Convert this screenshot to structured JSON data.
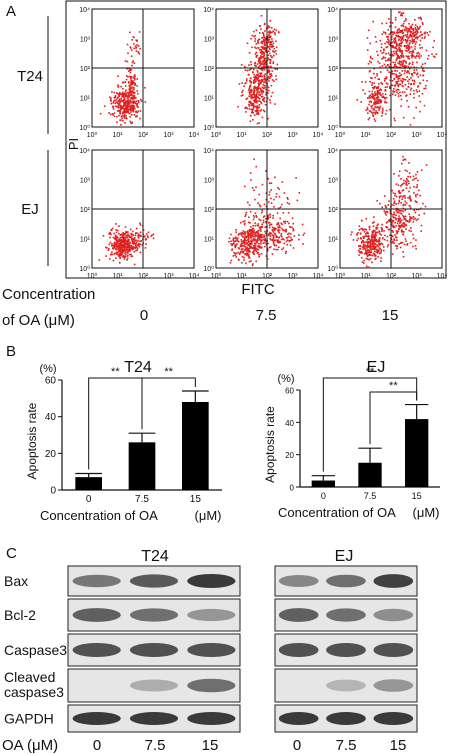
{
  "panel_a": {
    "label": "A",
    "x_axis_label": "FITC",
    "y_axis_label": "PI",
    "row_labels": [
      "T24",
      "EJ"
    ],
    "tick_labels": [
      "10⁰",
      "10¹",
      "10²",
      "10³",
      "10⁴"
    ],
    "concentration_caption_line1": "Concentration",
    "concentration_caption_line2": "of OA (μM)",
    "concentrations": [
      "0",
      "7.5",
      "15"
    ],
    "dot_color": "#e02020"
  },
  "panel_b": {
    "label": "B"
  },
  "panel_c": {
    "label": "C",
    "cell_lines": [
      "T24",
      "EJ"
    ],
    "proteins": [
      "Bax",
      "Bcl-2",
      "Caspase3",
      "Cleaved caspase3",
      "GAPDH"
    ],
    "dose_axis_label": "OA (μM)",
    "doses": [
      "0",
      "7.5",
      "15"
    ]
  },
  "chart_data": [
    {
      "type": "bar",
      "title": "T24",
      "xlabel": "Concentration of OA",
      "xlabel_unit": "(μM)",
      "ylabel": "Apoptosis rate",
      "ylabel_unit": "(%)",
      "categories": [
        "0",
        "7.5",
        "15"
      ],
      "values": [
        7,
        26,
        48
      ],
      "errors": [
        2,
        5,
        6
      ],
      "ylim": [
        0,
        60
      ],
      "yticks": [
        0,
        20,
        40,
        60
      ],
      "significance": [
        {
          "from": 0,
          "to": 1,
          "label": "**"
        },
        {
          "from": 1,
          "to": 2,
          "label": "**"
        }
      ],
      "bar_color": "#000000"
    },
    {
      "type": "bar",
      "title": "EJ",
      "xlabel": "Concentration of OA",
      "xlabel_unit": "(μM)",
      "ylabel": "Apoptosis rate",
      "ylabel_unit": "(%)",
      "categories": [
        "0",
        "7.5",
        "15"
      ],
      "values": [
        4,
        15,
        42
      ],
      "errors": [
        3,
        9,
        9
      ],
      "ylim": [
        0,
        60
      ],
      "yticks": [
        0,
        20,
        40,
        60
      ],
      "significance": [
        {
          "from": 0,
          "to": 2,
          "label": "**"
        },
        {
          "from": 1,
          "to": 2,
          "label": "**"
        }
      ],
      "bar_color": "#000000"
    }
  ]
}
